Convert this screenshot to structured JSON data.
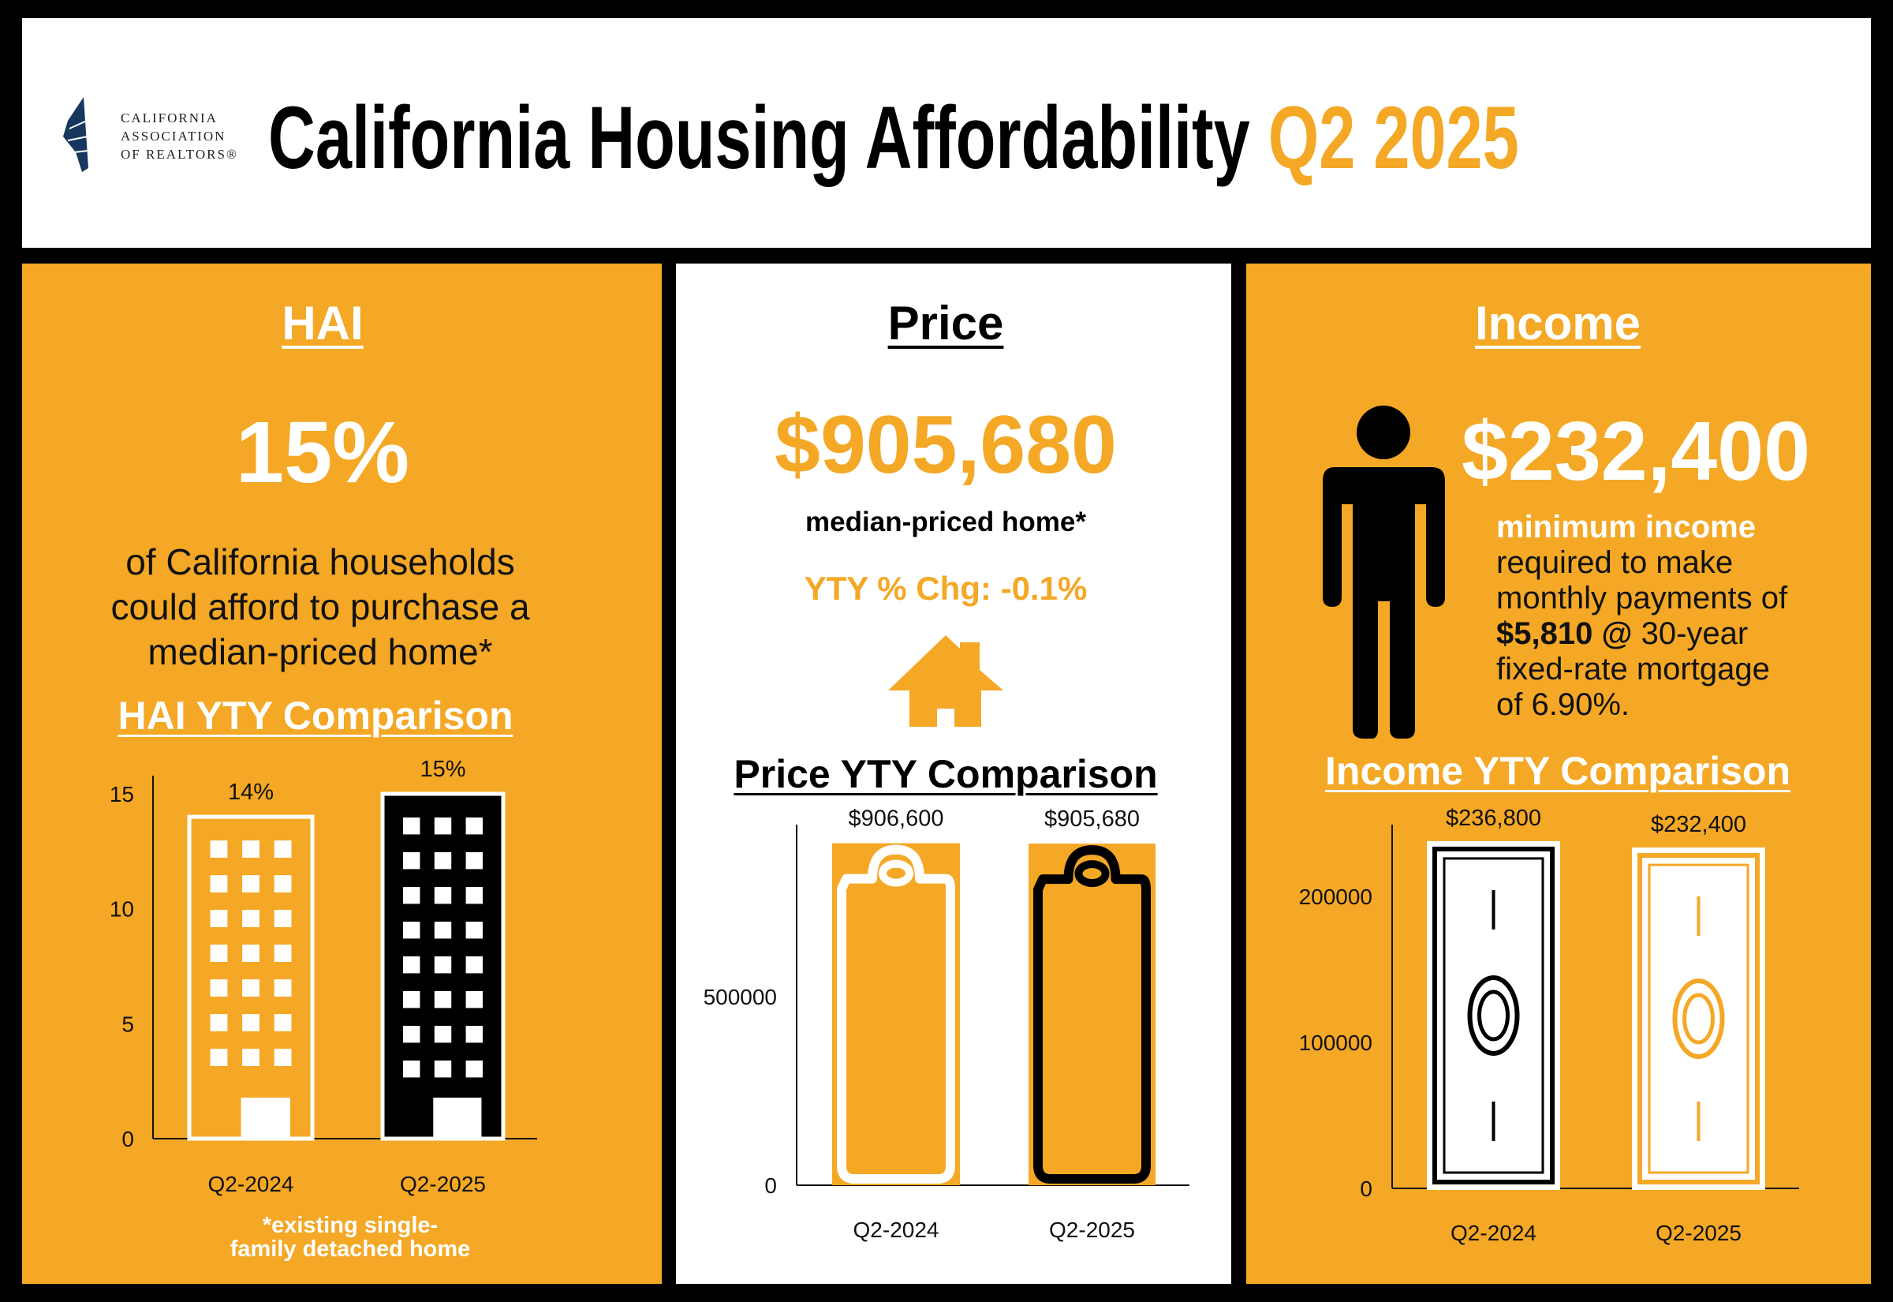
{
  "header": {
    "logo_text": [
      "CALIFORNIA",
      "ASSOCIATION",
      "OF REALTORS®"
    ],
    "title": "California Housing Affordability",
    "period": "Q2 2025"
  },
  "colors": {
    "accent": "#F4A825",
    "dark": "#000000",
    "logo_navy": "#17375E"
  },
  "hai": {
    "heading": "HAI",
    "value": "15%",
    "description": [
      "of California households",
      "could afford to purchase a",
      "median-priced home*"
    ],
    "comparison_title": "HAI YTY Comparison",
    "footnote": [
      "*existing single-",
      "family detached home"
    ],
    "icon": "office-building-icon"
  },
  "price": {
    "heading": "Price",
    "value": "$905,680",
    "label": "median-priced home*",
    "yty_change": "YTY % Chg: -0.1%",
    "icon": "house-icon",
    "comparison_title": "Price YTY Comparison"
  },
  "income": {
    "heading": "Income",
    "value": "$232,400",
    "icon": "person-icon",
    "desc_highlight": "minimum income",
    "desc_lines": [
      "required to make",
      "monthly payments of"
    ],
    "payment": "$5,810",
    "at": "@",
    "term": "30-year",
    "desc_line5": "fixed-rate mortgage",
    "rate_line": "of 6.90%.",
    "comparison_title": "Income YTY Comparison"
  },
  "chart_data": [
    {
      "type": "bar",
      "title": "HAI YTY Comparison",
      "categories": [
        "Q2-2024",
        "Q2-2025"
      ],
      "values": [
        14,
        15
      ],
      "data_labels": [
        "14%",
        "15%"
      ],
      "yticks": [
        0,
        5,
        10,
        15
      ],
      "ylim": [
        0,
        16
      ],
      "grid": false,
      "bar_icon": "office-building-icon"
    },
    {
      "type": "bar",
      "title": "Price YTY Comparison",
      "categories": [
        "Q2-2024",
        "Q2-2025"
      ],
      "values": [
        906600,
        905680
      ],
      "data_labels": [
        "$906,600",
        "$905,680"
      ],
      "yticks": [
        0,
        500000
      ],
      "ylim": [
        0,
        950000
      ],
      "grid": false,
      "bar_icon": "price-tag-icon"
    },
    {
      "type": "bar",
      "title": "Income YTY Comparison",
      "categories": [
        "Q2-2024",
        "Q2-2025"
      ],
      "values": [
        236800,
        232400
      ],
      "data_labels": [
        "$236,800",
        "$232,400"
      ],
      "yticks": [
        0,
        100000,
        200000
      ],
      "ylim": [
        0,
        250000
      ],
      "grid": false,
      "bar_icon": "dollar-bill-icon"
    }
  ]
}
